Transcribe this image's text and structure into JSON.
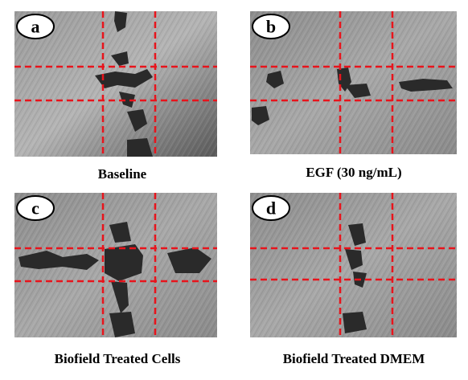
{
  "panels": [
    {
      "label": "a",
      "caption": "Baseline"
    },
    {
      "label": "b",
      "caption": "EGF (30 ng/mL)"
    },
    {
      "label": "c",
      "caption": "Biofield Treated Cells"
    },
    {
      "label": "d",
      "caption": "Biofield Treated DMEM"
    }
  ]
}
